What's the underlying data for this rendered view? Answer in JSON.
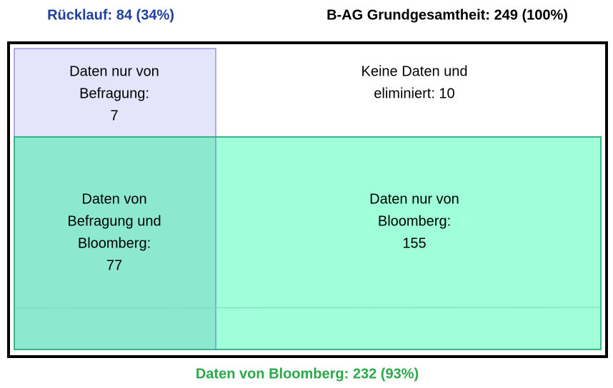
{
  "header": {
    "left": "Rücklauf: 84 (34%)",
    "right": "B-AG Grundgesamtheit: 249 (100%)"
  },
  "boxes": [
    {
      "lines": [
        "Daten nur von",
        "Befragung:",
        "7"
      ]
    },
    {
      "lines": [
        "Keine Daten und",
        "eliminiert: 10"
      ]
    },
    {
      "lines": [
        "Daten von",
        "Befragung und",
        "Bloomberg:",
        "77"
      ]
    },
    {
      "lines": [
        "Daten nur von",
        "Bloomberg:",
        "155"
      ]
    }
  ],
  "footer": "Daten von Bloomberg: 232 (93%)"
}
